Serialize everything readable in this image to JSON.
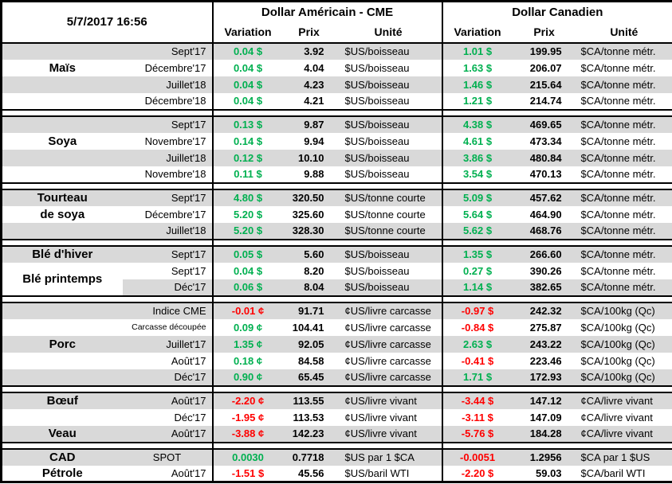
{
  "meta": {
    "timestamp": "5/7/2017 16:56"
  },
  "header": {
    "us_group": "Dollar Américain - CME",
    "ca_group": "Dollar Canadien",
    "variation": "Variation",
    "prix": "Prix",
    "unite": "Unité"
  },
  "colors": {
    "positive": "#00B050",
    "negative": "#FF0000",
    "row_shade": "#D9D9D9",
    "border": "#000000"
  },
  "sections": [
    {
      "name": "mais",
      "rows": [
        {
          "label": "",
          "month": "Sept'17",
          "shade": true,
          "us": {
            "var": "0.04 $",
            "dir": "pos",
            "prix": "3.92",
            "unit": "$US/boisseau"
          },
          "ca": {
            "var": "1.01 $",
            "dir": "pos",
            "prix": "199.95",
            "unit": "$CA/tonne métr."
          }
        },
        {
          "label": "Maïs",
          "month": "Décembre'17",
          "shade": false,
          "us": {
            "var": "0.04 $",
            "dir": "pos",
            "prix": "4.04",
            "unit": "$US/boisseau"
          },
          "ca": {
            "var": "1.63 $",
            "dir": "pos",
            "prix": "206.07",
            "unit": "$CA/tonne métr."
          }
        },
        {
          "label": "",
          "month": "Juillet'18",
          "shade": true,
          "us": {
            "var": "0.04 $",
            "dir": "pos",
            "prix": "4.23",
            "unit": "$US/boisseau"
          },
          "ca": {
            "var": "1.46 $",
            "dir": "pos",
            "prix": "215.64",
            "unit": "$CA/tonne métr."
          }
        },
        {
          "label": "",
          "month": "Décembre'18",
          "shade": false,
          "us": {
            "var": "0.04 $",
            "dir": "pos",
            "prix": "4.21",
            "unit": "$US/boisseau"
          },
          "ca": {
            "var": "1.21 $",
            "dir": "pos",
            "prix": "214.74",
            "unit": "$CA/tonne métr."
          }
        }
      ]
    },
    {
      "name": "soya",
      "rows": [
        {
          "label": "",
          "month": "Sept'17",
          "shade": true,
          "us": {
            "var": "0.13 $",
            "dir": "pos",
            "prix": "9.87",
            "unit": "$US/boisseau"
          },
          "ca": {
            "var": "4.38 $",
            "dir": "pos",
            "prix": "469.65",
            "unit": "$CA/tonne métr."
          }
        },
        {
          "label": "Soya",
          "month": "Novembre'17",
          "shade": false,
          "us": {
            "var": "0.14 $",
            "dir": "pos",
            "prix": "9.94",
            "unit": "$US/boisseau"
          },
          "ca": {
            "var": "4.61 $",
            "dir": "pos",
            "prix": "473.34",
            "unit": "$CA/tonne métr."
          }
        },
        {
          "label": "",
          "month": "Juillet'18",
          "shade": true,
          "us": {
            "var": "0.12 $",
            "dir": "pos",
            "prix": "10.10",
            "unit": "$US/boisseau"
          },
          "ca": {
            "var": "3.86 $",
            "dir": "pos",
            "prix": "480.84",
            "unit": "$CA/tonne métr."
          }
        },
        {
          "label": "",
          "month": "Novembre'18",
          "shade": false,
          "us": {
            "var": "0.11 $",
            "dir": "pos",
            "prix": "9.88",
            "unit": "$US/boisseau"
          },
          "ca": {
            "var": "3.54 $",
            "dir": "pos",
            "prix": "470.13",
            "unit": "$CA/tonne métr."
          }
        }
      ]
    },
    {
      "name": "tourteau-de-soya",
      "rows": [
        {
          "label": "Tourteau",
          "month": "Sept'17",
          "shade": true,
          "us": {
            "var": "4.80 $",
            "dir": "pos",
            "prix": "320.50",
            "unit": "$US/tonne courte"
          },
          "ca": {
            "var": "5.09 $",
            "dir": "pos",
            "prix": "457.62",
            "unit": "$CA/tonne métr."
          }
        },
        {
          "label": "de soya",
          "month": "Décembre'17",
          "shade": false,
          "us": {
            "var": "5.20 $",
            "dir": "pos",
            "prix": "325.60",
            "unit": "$US/tonne courte"
          },
          "ca": {
            "var": "5.64 $",
            "dir": "pos",
            "prix": "464.90",
            "unit": "$CA/tonne métr."
          }
        },
        {
          "label": "",
          "month": "Juillet'18",
          "shade": true,
          "us": {
            "var": "5.20 $",
            "dir": "pos",
            "prix": "328.30",
            "unit": "$US/tonne courte"
          },
          "ca": {
            "var": "5.62 $",
            "dir": "pos",
            "prix": "468.76",
            "unit": "$CA/tonne métr."
          }
        }
      ]
    },
    {
      "name": "ble",
      "rows": [
        {
          "label": "Blé d'hiver",
          "month": "Sept'17",
          "shade": true,
          "us": {
            "var": "0.05 $",
            "dir": "pos",
            "prix": "5.60",
            "unit": "$US/boisseau"
          },
          "ca": {
            "var": "1.35 $",
            "dir": "pos",
            "prix": "266.60",
            "unit": "$CA/tonne métr."
          }
        },
        {
          "label": "Blé printemps",
          "label_span": 2,
          "month": "Sept'17",
          "shade": false,
          "us": {
            "var": "0.04 $",
            "dir": "pos",
            "prix": "8.20",
            "unit": "$US/boisseau"
          },
          "ca": {
            "var": "0.27 $",
            "dir": "pos",
            "prix": "390.26",
            "unit": "$CA/tonne métr."
          }
        },
        {
          "label_skip": true,
          "month": "Déc'17",
          "shade": true,
          "us": {
            "var": "0.06 $",
            "dir": "pos",
            "prix": "8.04",
            "unit": "$US/boisseau"
          },
          "ca": {
            "var": "1.14 $",
            "dir": "pos",
            "prix": "382.65",
            "unit": "$CA/tonne métr."
          }
        }
      ]
    },
    {
      "name": "porc",
      "rows": [
        {
          "label": "",
          "month": "Indice CME",
          "shade": true,
          "us": {
            "var": "-0.01 ¢",
            "dir": "neg",
            "prix": "91.71",
            "unit": "¢US/livre carcasse"
          },
          "ca": {
            "var": "-0.97 $",
            "dir": "neg",
            "prix": "242.32",
            "unit": "$CA/100kg (Qc)"
          }
        },
        {
          "label": "",
          "month": "Carcasse découpée",
          "month_small": true,
          "shade": false,
          "us": {
            "var": "0.09 ¢",
            "dir": "pos",
            "prix": "104.41",
            "unit": "¢US/livre carcasse"
          },
          "ca": {
            "var": "-0.84 $",
            "dir": "neg",
            "prix": "275.87",
            "unit": "$CA/100kg (Qc)"
          }
        },
        {
          "label": "Porc",
          "month": "Juillet'17",
          "shade": true,
          "us": {
            "var": "1.35 ¢",
            "dir": "pos",
            "prix": "92.05",
            "unit": "¢US/livre carcasse"
          },
          "ca": {
            "var": "2.63 $",
            "dir": "pos",
            "prix": "243.22",
            "unit": "$CA/100kg (Qc)"
          }
        },
        {
          "label": "",
          "month": "Août'17",
          "shade": false,
          "us": {
            "var": "0.18 ¢",
            "dir": "pos",
            "prix": "84.58",
            "unit": "¢US/livre carcasse"
          },
          "ca": {
            "var": "-0.41 $",
            "dir": "neg",
            "prix": "223.46",
            "unit": "$CA/100kg (Qc)"
          }
        },
        {
          "label": "",
          "month": "Déc'17",
          "shade": true,
          "us": {
            "var": "0.90 ¢",
            "dir": "pos",
            "prix": "65.45",
            "unit": "¢US/livre carcasse"
          },
          "ca": {
            "var": "1.71 $",
            "dir": "pos",
            "prix": "172.93",
            "unit": "$CA/100kg (Qc)"
          }
        }
      ]
    },
    {
      "name": "boeuf-veau",
      "rows": [
        {
          "label": "Bœuf",
          "month": "Août'17",
          "shade": true,
          "us": {
            "var": "-2.20 ¢",
            "dir": "neg",
            "prix": "113.55",
            "unit": "¢US/livre vivant"
          },
          "ca": {
            "var": "-3.44 $",
            "dir": "neg",
            "prix": "147.12",
            "unit": "¢CA/livre vivant"
          }
        },
        {
          "label": "",
          "month": "Déc'17",
          "shade": false,
          "us": {
            "var": "-1.95 ¢",
            "dir": "neg",
            "prix": "113.53",
            "unit": "¢US/livre vivant"
          },
          "ca": {
            "var": "-3.11 $",
            "dir": "neg",
            "prix": "147.09",
            "unit": "¢CA/livre vivant"
          }
        },
        {
          "label": "Veau",
          "month": "Août'17",
          "shade": true,
          "us": {
            "var": "-3.88 ¢",
            "dir": "neg",
            "prix": "142.23",
            "unit": "¢US/livre vivant"
          },
          "ca": {
            "var": "-5.76 $",
            "dir": "neg",
            "prix": "184.28",
            "unit": "¢CA/livre vivant"
          }
        }
      ]
    },
    {
      "name": "cad-petrole",
      "rows": [
        {
          "label": "CAD",
          "month": "SPOT",
          "month_center": true,
          "shade": true,
          "us": {
            "var": "0.0030",
            "dir": "pos",
            "prix": "0.7718",
            "unit": "$US par 1 $CA"
          },
          "ca": {
            "var": "-0.0051",
            "dir": "neg",
            "prix": "1.2956",
            "unit": "$CA par 1 $US"
          }
        },
        {
          "label": "Pétrole",
          "month": "Août'17",
          "shade": false,
          "us": {
            "var": "-1.51 $",
            "dir": "neg",
            "prix": "45.56",
            "unit": "$US/baril WTI"
          },
          "ca": {
            "var": "-2.20 $",
            "dir": "neg",
            "prix": "59.03",
            "unit": "$CA/baril WTI"
          }
        }
      ]
    }
  ]
}
